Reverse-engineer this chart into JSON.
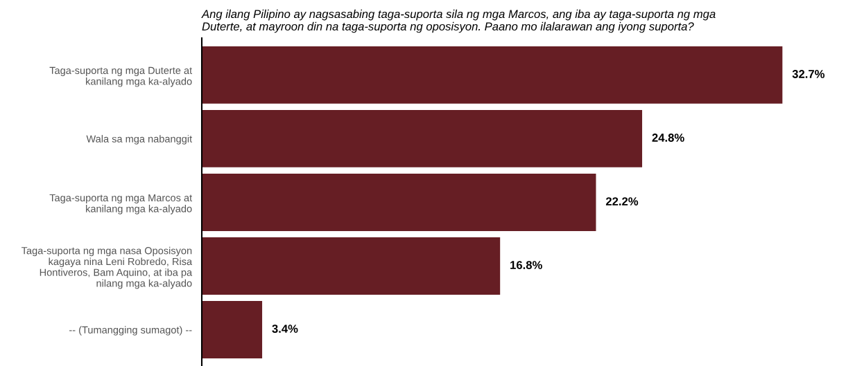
{
  "chart_data": {
    "type": "bar",
    "orientation": "horizontal",
    "title": "Ang ilang Pilipino ay nagsasabing taga-suporta sila ng mga Marcos, ang iba ay taga-suporta ng mga\nDuterte, at mayroon din na taga-suporta ng oposisyon. Paano mo ilalarawan ang iyong suporta?",
    "categories": [
      "Taga-suporta ng mga Duterte at\nkanilang mga ka-alyado",
      "Wala sa mga nabanggit",
      "Taga-suporta ng mga Marcos at\nkanilang mga ka-alyado",
      "Taga-suporta ng mga nasa Oposisyon\nkagaya nina Leni Robredo, Risa\nHontiveros, Bam Aquino, at iba pa\nnilang mga ka-alyado",
      "-- (Tumangging sumagot) --"
    ],
    "values": [
      32.7,
      24.8,
      22.2,
      16.8,
      3.4
    ],
    "value_labels": [
      "32.7%",
      "24.8%",
      "22.2%",
      "16.8%",
      "3.4%"
    ],
    "color": "#661e24",
    "grid": false,
    "legend": false,
    "tick_labels": "y"
  }
}
